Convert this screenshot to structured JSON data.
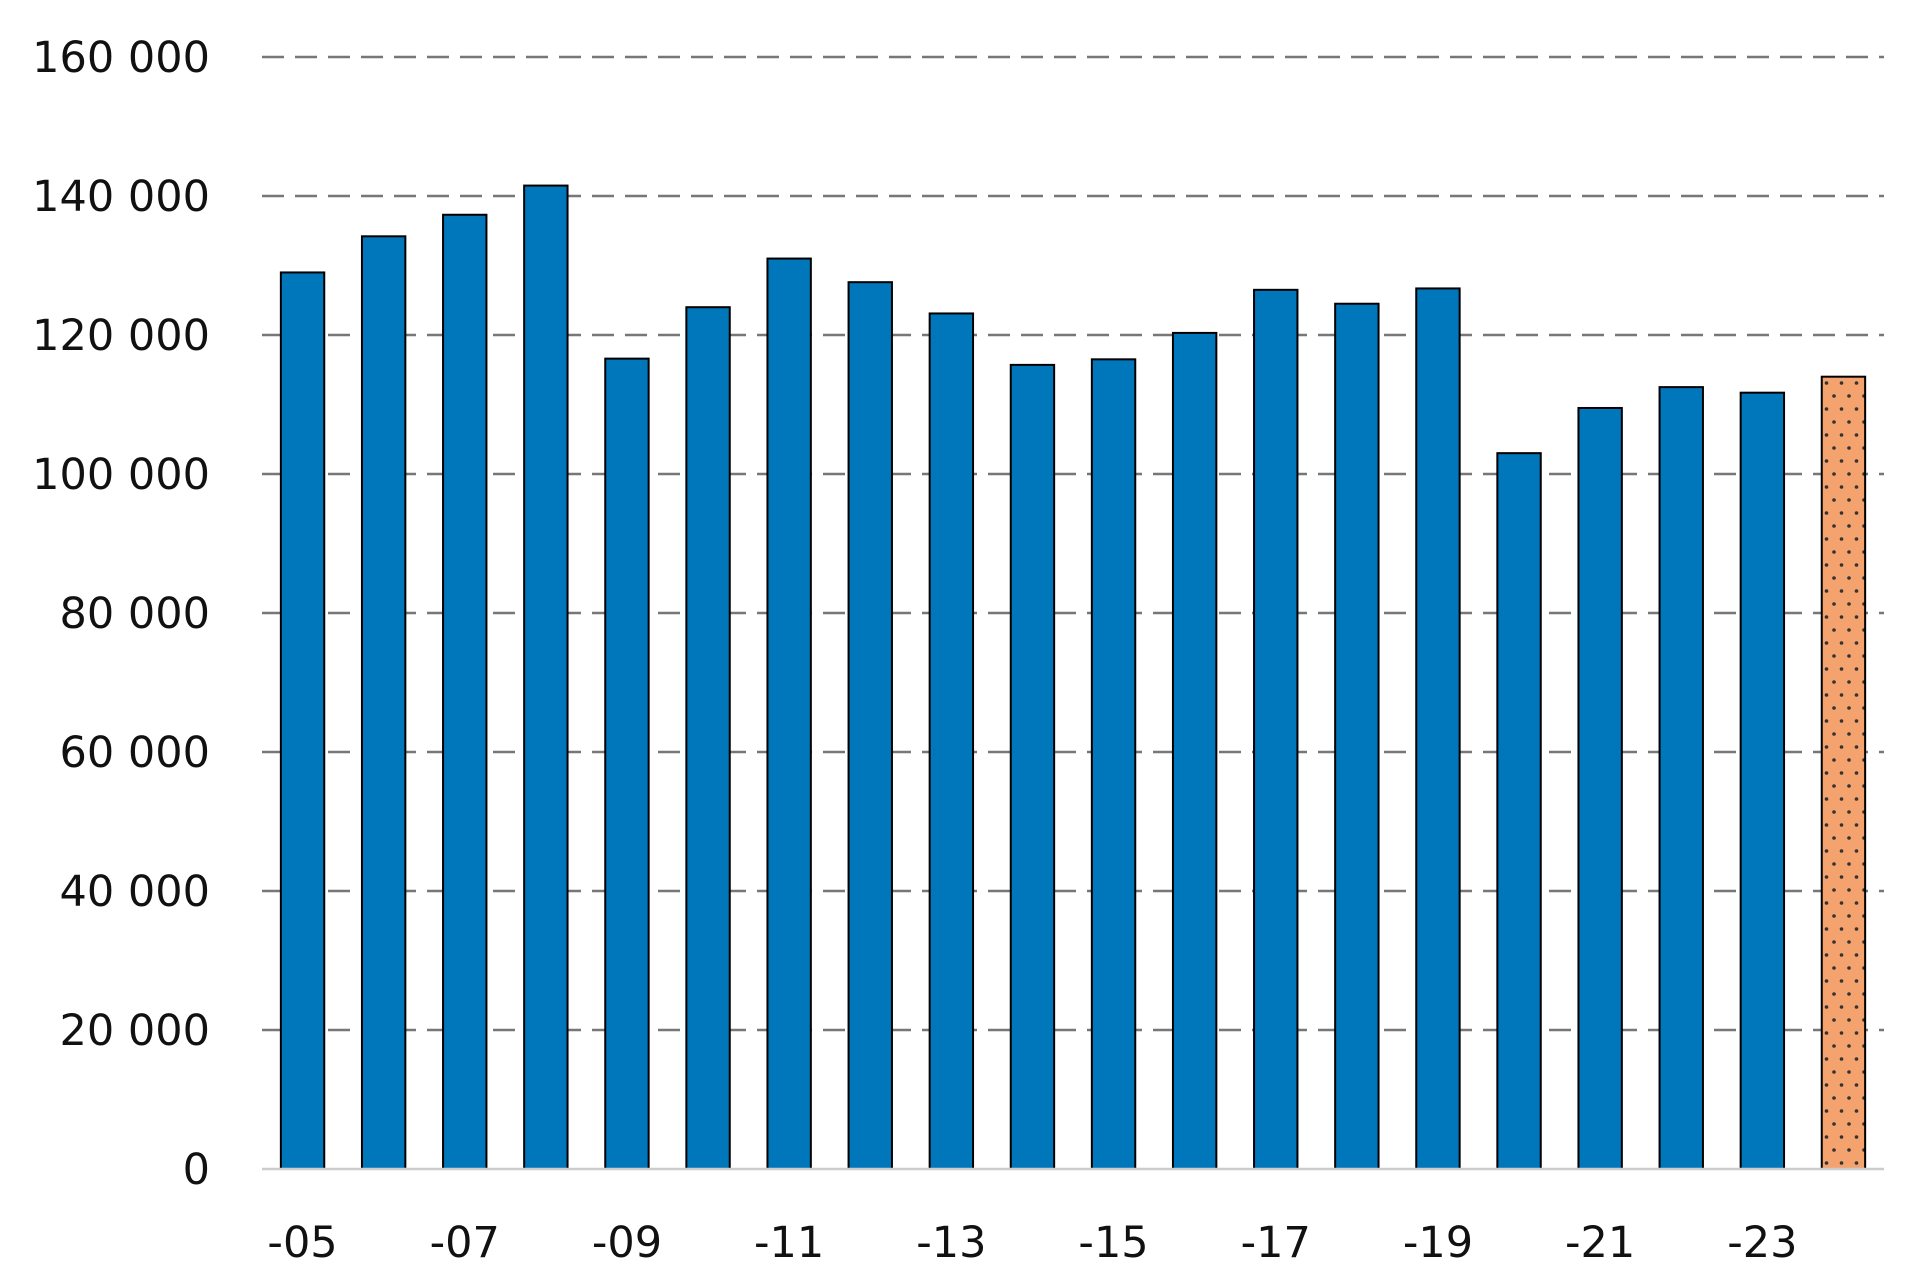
{
  "chart_data": {
    "type": "bar",
    "title": "",
    "xlabel": "",
    "ylabel": "",
    "ylim": [
      0,
      160000
    ],
    "yticks": [
      0,
      20000,
      40000,
      60000,
      80000,
      100000,
      120000,
      140000,
      160000
    ],
    "ytick_labels": [
      "0",
      "20 000",
      "40 000",
      "60 000",
      "80 000",
      "100 000",
      "120 000",
      "140 000",
      "160 000"
    ],
    "grid": "horizontal-dashed",
    "categories": [
      "2005",
      "2006",
      "2007",
      "2008",
      "2009",
      "2010",
      "2011",
      "2012",
      "2013",
      "2014",
      "2015",
      "2016",
      "2017",
      "2018",
      "2019",
      "2020",
      "2021",
      "2022",
      "2023",
      "2024"
    ],
    "xtick_labels": [
      "-05",
      "",
      "-07",
      "",
      "-09",
      "",
      "-11",
      "",
      "-13",
      "",
      "-15",
      "",
      "-17",
      "",
      "-19",
      "",
      "-21",
      "",
      "-23",
      ""
    ],
    "values": [
      129000,
      134200,
      137300,
      141500,
      116600,
      124000,
      131000,
      127600,
      123100,
      115700,
      116500,
      120300,
      126500,
      124500,
      126700,
      103000,
      109500,
      112500,
      111700,
      114000
    ],
    "colors": {
      "bar": "#0077bb",
      "highlight": "#f4a26e",
      "outline": "#000000",
      "grid": "#777777",
      "axis": "#cccccc"
    },
    "highlight_index": 19,
    "highlight_pattern": "dotted"
  }
}
